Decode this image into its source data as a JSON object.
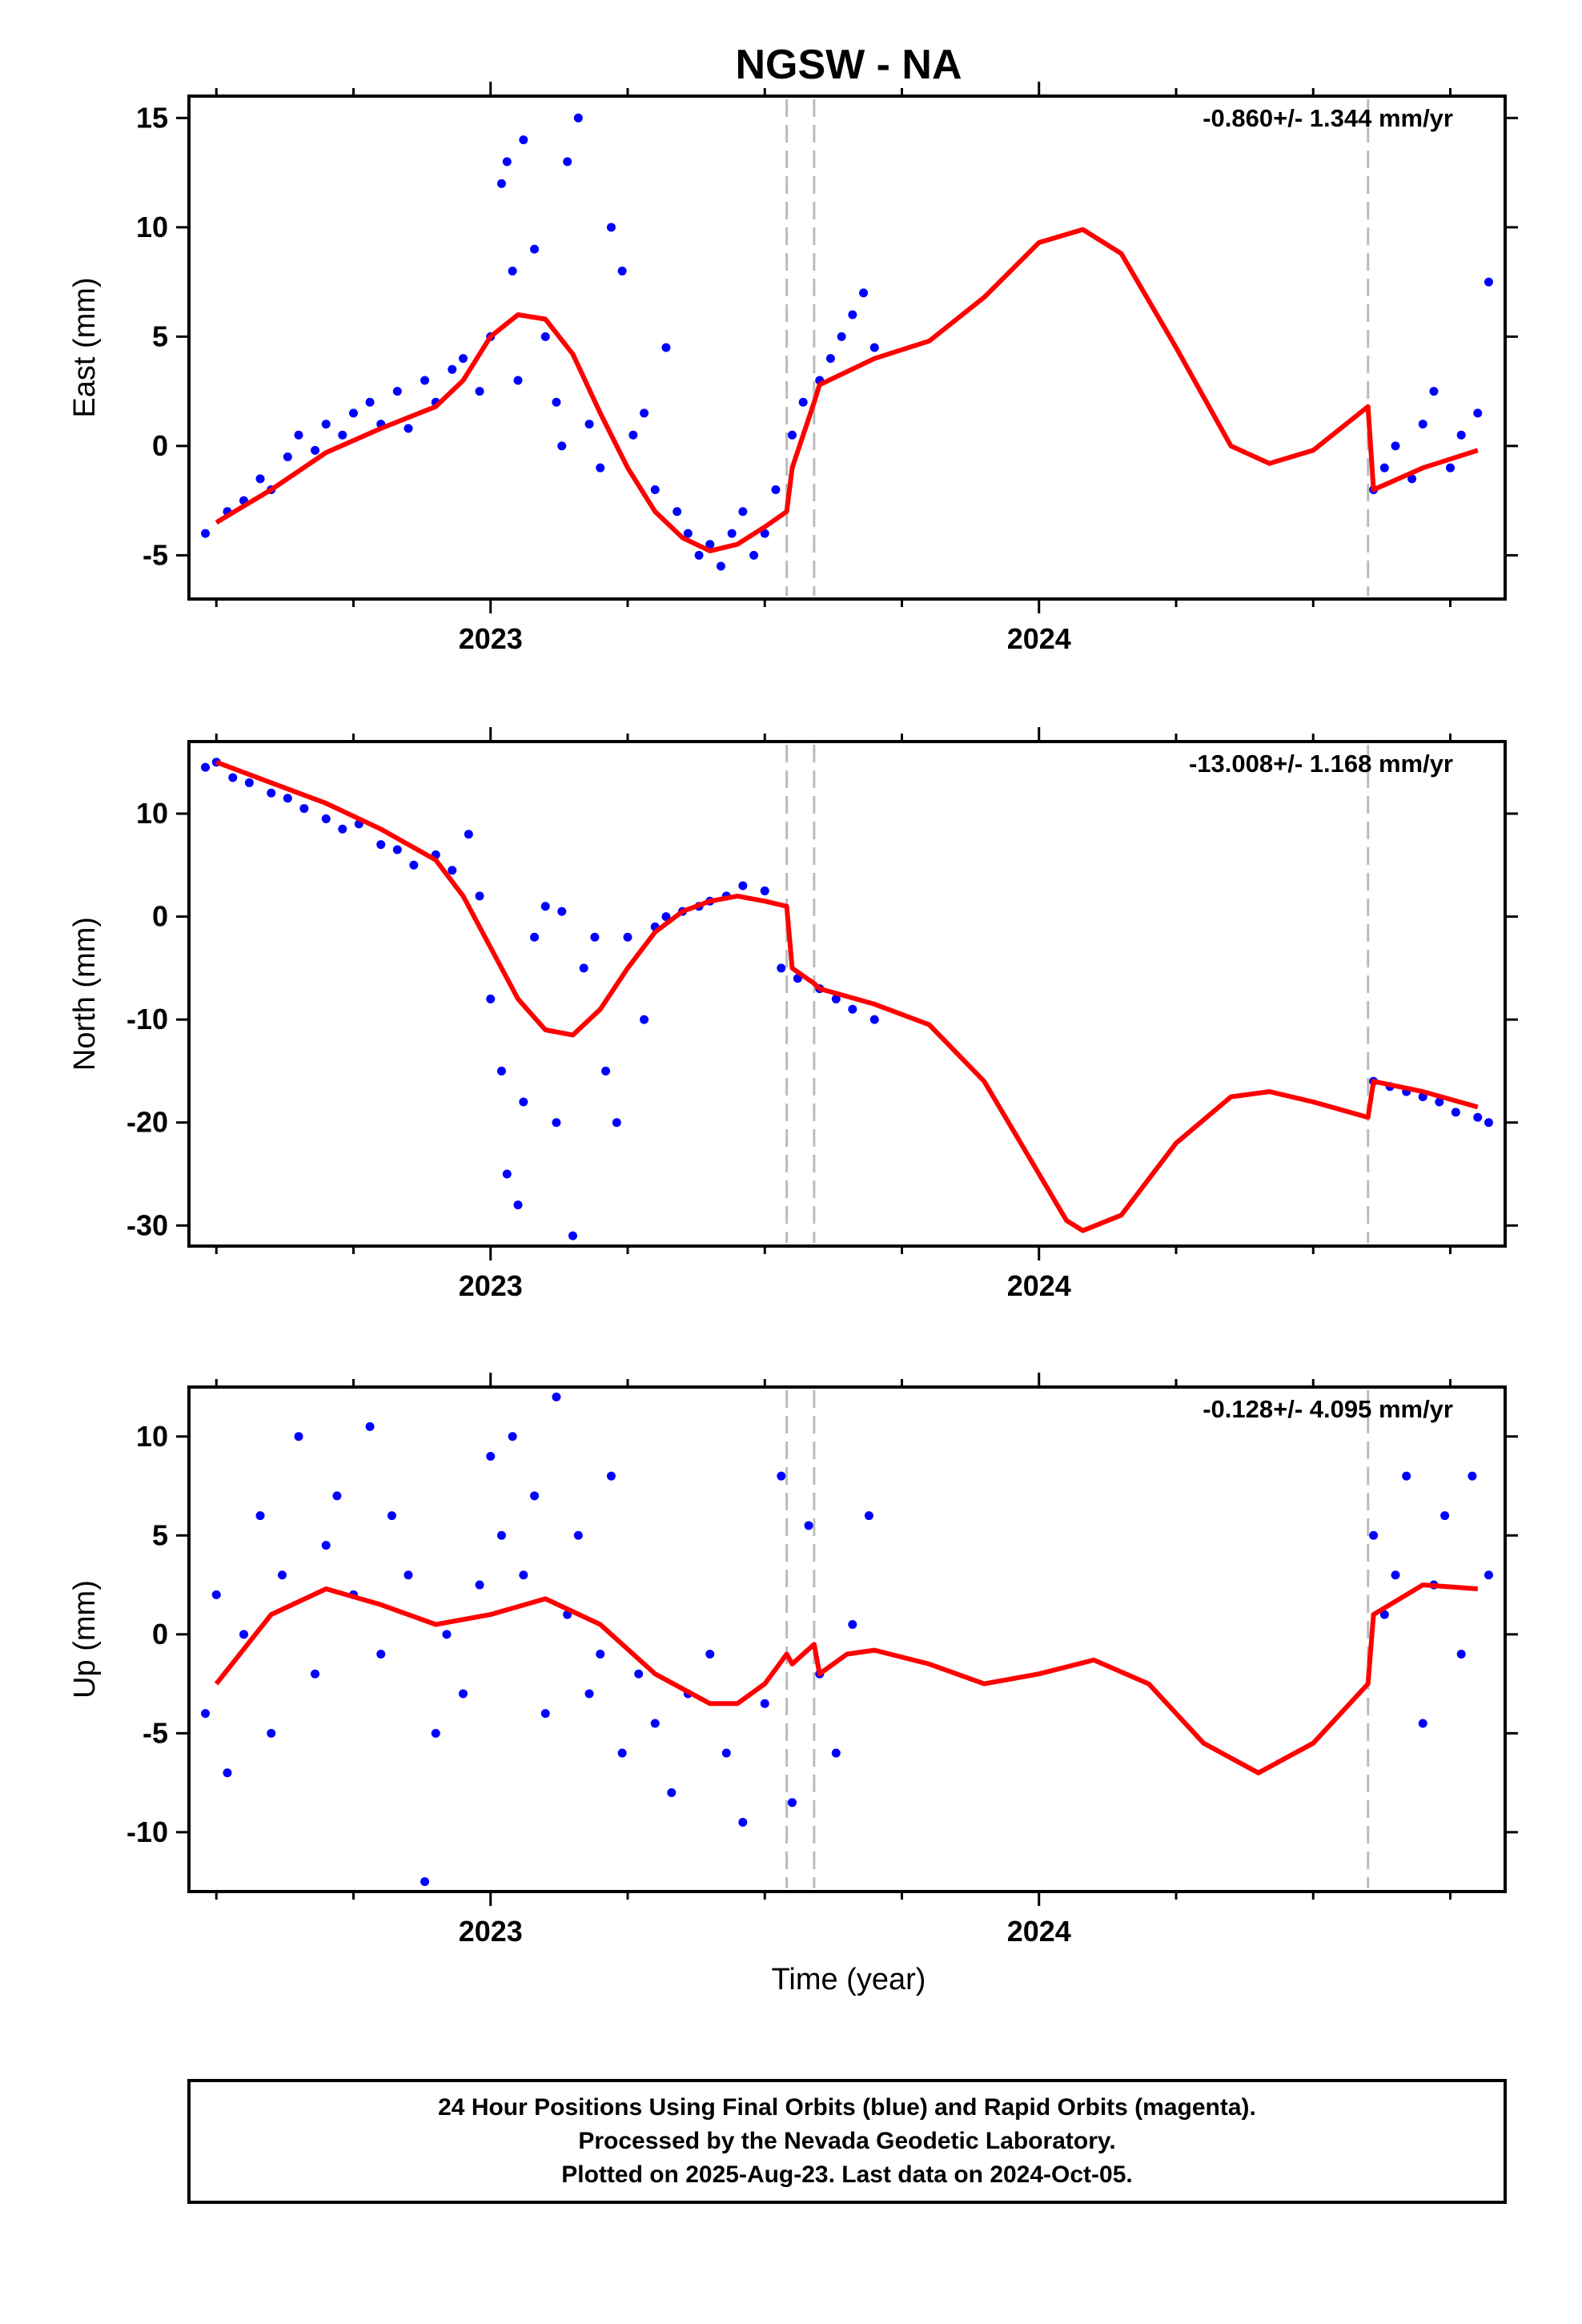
{
  "chart_data": {
    "type": "scatter",
    "title": "NGSW - NA",
    "xlabel": "Time (year)",
    "x_tick_labels": [
      "2023",
      "2024"
    ],
    "xlim": [
      2022.45,
      2024.85
    ],
    "event_lines_x": [
      2023.54,
      2023.59,
      2024.6
    ],
    "colors": {
      "points": "#0000ff",
      "model": "#ff0000",
      "events": "#bbbbbb",
      "frame": "#000000"
    },
    "panels": [
      {
        "name": "East",
        "ylabel": "East (mm)",
        "ylim": [
          -7,
          16
        ],
        "yticks": [
          -5,
          0,
          5,
          10,
          15
        ],
        "rate": "-0.860+/- 1.344 mm/yr",
        "model_x": [
          2022.5,
          2022.6,
          2022.7,
          2022.8,
          2022.9,
          2022.95,
          2023.0,
          2023.05,
          2023.1,
          2023.15,
          2023.2,
          2023.25,
          2023.3,
          2023.35,
          2023.4,
          2023.45,
          2023.5,
          2023.54,
          2023.55,
          2023.59,
          2023.6,
          2023.7,
          2023.8,
          2023.9,
          2024.0,
          2024.08,
          2024.15,
          2024.25,
          2024.35,
          2024.42,
          2024.5,
          2024.6,
          2024.61,
          2024.7,
          2024.8
        ],
        "model_y": [
          -3.5,
          -2.0,
          -0.3,
          0.8,
          1.8,
          3.0,
          5.0,
          6.0,
          5.8,
          4.2,
          1.5,
          -1.0,
          -3.0,
          -4.2,
          -4.8,
          -4.5,
          -3.7,
          -3.0,
          -1.0,
          2.0,
          2.8,
          4.0,
          4.8,
          6.8,
          9.3,
          9.9,
          8.8,
          4.5,
          0.0,
          -0.8,
          -0.2,
          1.8,
          -2.0,
          -1.0,
          -0.2
        ],
        "obs_x": [
          2022.48,
          2022.52,
          2022.55,
          2022.58,
          2022.6,
          2022.63,
          2022.65,
          2022.68,
          2022.7,
          2022.73,
          2022.75,
          2022.78,
          2022.8,
          2022.83,
          2022.85,
          2022.88,
          2022.9,
          2022.93,
          2022.95,
          2022.98,
          2023.0,
          2023.02,
          2023.03,
          2023.04,
          2023.05,
          2023.06,
          2023.08,
          2023.1,
          2023.12,
          2023.13,
          2023.14,
          2023.16,
          2023.18,
          2023.2,
          2023.22,
          2023.24,
          2023.26,
          2023.28,
          2023.3,
          2023.32,
          2023.34,
          2023.36,
          2023.38,
          2023.4,
          2023.42,
          2023.44,
          2023.46,
          2023.48,
          2023.5,
          2023.52,
          2023.55,
          2023.57,
          2023.6,
          2023.62,
          2023.64,
          2023.66,
          2023.68,
          2023.7,
          2024.61,
          2024.63,
          2024.65,
          2024.68,
          2024.7,
          2024.72,
          2024.75,
          2024.77,
          2024.8,
          2024.82
        ],
        "obs_y": [
          -4.0,
          -3.0,
          -2.5,
          -1.5,
          -2.0,
          -0.5,
          0.5,
          -0.2,
          1.0,
          0.5,
          1.5,
          2.0,
          1.0,
          2.5,
          0.8,
          3.0,
          2.0,
          3.5,
          4.0,
          2.5,
          5.0,
          12.0,
          13.0,
          8.0,
          3.0,
          14.0,
          9.0,
          5.0,
          2.0,
          0.0,
          13.0,
          15.0,
          1.0,
          -1.0,
          10.0,
          8.0,
          0.5,
          1.5,
          -2.0,
          4.5,
          -3.0,
          -4.0,
          -5.0,
          -4.5,
          -5.5,
          -4.0,
          -3.0,
          -5.0,
          -4.0,
          -2.0,
          0.5,
          2.0,
          3.0,
          4.0,
          5.0,
          6.0,
          7.0,
          4.5,
          -2.0,
          -1.0,
          0.0,
          -1.5,
          1.0,
          2.5,
          -1.0,
          0.5,
          1.5,
          7.5
        ]
      },
      {
        "name": "North",
        "ylabel": "North (mm)",
        "ylim": [
          -32,
          17
        ],
        "yticks": [
          -30,
          -20,
          -10,
          0,
          10
        ],
        "rate": "-13.008+/- 1.168 mm/yr",
        "model_x": [
          2022.5,
          2022.6,
          2022.7,
          2022.8,
          2022.9,
          2022.95,
          2023.0,
          2023.05,
          2023.1,
          2023.15,
          2023.2,
          2023.25,
          2023.3,
          2023.35,
          2023.4,
          2023.45,
          2023.5,
          2023.54,
          2023.55,
          2023.59,
          2023.6,
          2023.7,
          2023.8,
          2023.9,
          2024.0,
          2024.05,
          2024.08,
          2024.15,
          2024.25,
          2024.35,
          2024.42,
          2024.5,
          2024.6,
          2024.61,
          2024.7,
          2024.8
        ],
        "model_y": [
          15.0,
          13.0,
          11.0,
          8.5,
          5.5,
          2.0,
          -3.0,
          -8.0,
          -11.0,
          -11.5,
          -9.0,
          -5.0,
          -1.5,
          0.5,
          1.5,
          2.0,
          1.5,
          1.0,
          -5.0,
          -6.5,
          -7.0,
          -8.5,
          -10.5,
          -16.0,
          -25.0,
          -29.5,
          -30.5,
          -29.0,
          -22.0,
          -17.5,
          -17.0,
          -18.0,
          -19.5,
          -16.0,
          -17.0,
          -18.5
        ],
        "obs_x": [
          2022.48,
          2022.5,
          2022.53,
          2022.56,
          2022.6,
          2022.63,
          2022.66,
          2022.7,
          2022.73,
          2022.76,
          2022.8,
          2022.83,
          2022.86,
          2022.9,
          2022.93,
          2022.96,
          2022.98,
          2023.0,
          2023.02,
          2023.03,
          2023.05,
          2023.06,
          2023.08,
          2023.1,
          2023.12,
          2023.13,
          2023.15,
          2023.17,
          2023.19,
          2023.21,
          2023.23,
          2023.25,
          2023.28,
          2023.3,
          2023.32,
          2023.35,
          2023.38,
          2023.4,
          2023.43,
          2023.46,
          2023.5,
          2023.53,
          2023.56,
          2023.6,
          2023.63,
          2023.66,
          2023.7,
          2024.61,
          2024.64,
          2024.67,
          2024.7,
          2024.73,
          2024.76,
          2024.8,
          2024.82
        ],
        "obs_y": [
          14.5,
          15.0,
          13.5,
          13.0,
          12.0,
          11.5,
          10.5,
          9.5,
          8.5,
          9.0,
          7.0,
          6.5,
          5.0,
          6.0,
          4.5,
          8.0,
          2.0,
          -8.0,
          -15.0,
          -25.0,
          -28.0,
          -18.0,
          -2.0,
          1.0,
          -20.0,
          0.5,
          -31.0,
          -5.0,
          -2.0,
          -15.0,
          -20.0,
          -2.0,
          -10.0,
          -1.0,
          0.0,
          0.5,
          1.0,
          1.5,
          2.0,
          3.0,
          2.5,
          -5.0,
          -6.0,
          -7.0,
          -8.0,
          -9.0,
          -10.0,
          -16.0,
          -16.5,
          -17.0,
          -17.5,
          -18.0,
          -19.0,
          -19.5,
          -20.0
        ]
      },
      {
        "name": "Up",
        "ylabel": "Up (mm)",
        "ylim": [
          -13,
          12.5
        ],
        "yticks": [
          -10,
          -5,
          0,
          5,
          10
        ],
        "rate": "-0.128+/- 4.095 mm/yr",
        "model_x": [
          2022.5,
          2022.6,
          2022.7,
          2022.8,
          2022.9,
          2023.0,
          2023.1,
          2023.2,
          2023.3,
          2023.4,
          2023.45,
          2023.5,
          2023.54,
          2023.55,
          2023.59,
          2023.6,
          2023.65,
          2023.7,
          2023.8,
          2023.9,
          2024.0,
          2024.1,
          2024.2,
          2024.3,
          2024.4,
          2024.5,
          2024.6,
          2024.61,
          2024.7,
          2024.8
        ],
        "model_y": [
          -2.5,
          1.0,
          2.3,
          1.5,
          0.5,
          1.0,
          1.8,
          0.5,
          -2.0,
          -3.5,
          -3.5,
          -2.5,
          -1.0,
          -1.5,
          -0.5,
          -2.0,
          -1.0,
          -0.8,
          -1.5,
          -2.5,
          -2.0,
          -1.3,
          -2.5,
          -5.5,
          -7.0,
          -5.5,
          -2.5,
          1.0,
          2.5,
          2.3
        ],
        "obs_x": [
          2022.48,
          2022.5,
          2022.52,
          2022.55,
          2022.58,
          2022.6,
          2022.62,
          2022.65,
          2022.68,
          2022.7,
          2022.72,
          2022.75,
          2022.78,
          2022.8,
          2022.82,
          2022.85,
          2022.88,
          2022.9,
          2022.92,
          2022.95,
          2022.98,
          2023.0,
          2023.02,
          2023.04,
          2023.06,
          2023.08,
          2023.1,
          2023.12,
          2023.14,
          2023.16,
          2023.18,
          2023.2,
          2023.22,
          2023.24,
          2023.27,
          2023.3,
          2023.33,
          2023.36,
          2023.4,
          2023.43,
          2023.46,
          2023.5,
          2023.53,
          2023.55,
          2023.58,
          2023.6,
          2023.63,
          2023.66,
          2023.69,
          2024.61,
          2024.63,
          2024.65,
          2024.67,
          2024.7,
          2024.72,
          2024.74,
          2024.77,
          2024.79,
          2024.82
        ],
        "obs_y": [
          -4.0,
          2.0,
          -7.0,
          0.0,
          6.0,
          -5.0,
          3.0,
          10.0,
          -2.0,
          4.5,
          7.0,
          2.0,
          10.5,
          -1.0,
          6.0,
          3.0,
          -12.5,
          -5.0,
          0.0,
          -3.0,
          2.5,
          9.0,
          5.0,
          10.0,
          3.0,
          7.0,
          -4.0,
          12.0,
          1.0,
          5.0,
          -3.0,
          -1.0,
          8.0,
          -6.0,
          -2.0,
          -4.5,
          -8.0,
          -3.0,
          -1.0,
          -6.0,
          -9.5,
          -3.5,
          8.0,
          -8.5,
          5.5,
          -2.0,
          -6.0,
          0.5,
          6.0,
          5.0,
          1.0,
          3.0,
          8.0,
          -4.5,
          2.5,
          6.0,
          -1.0,
          8.0,
          3.0
        ]
      }
    ]
  },
  "footer": {
    "line1": "24 Hour Positions Using Final Orbits (blue) and Rapid Orbits (magenta).",
    "line2": "Processed by the Nevada Geodetic Laboratory.",
    "line3": "Plotted on 2025-Aug-23. Last data on 2024-Oct-05."
  }
}
